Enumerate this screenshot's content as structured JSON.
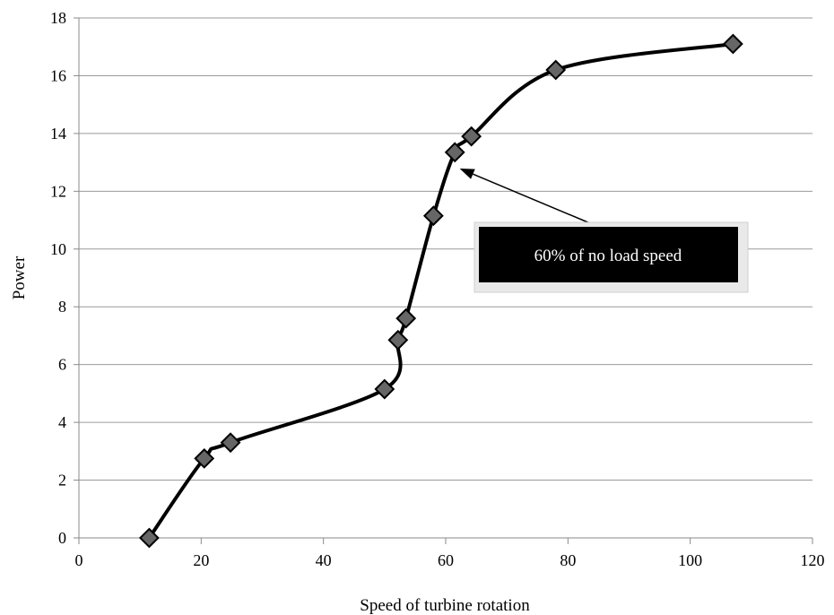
{
  "chart_data": {
    "type": "line",
    "title": "",
    "xlabel": "Speed of turbine rotation",
    "ylabel": "Power",
    "xlim": [
      0,
      120
    ],
    "ylim": [
      0,
      18
    ],
    "xticks": [
      0,
      20,
      40,
      60,
      80,
      100,
      120
    ],
    "yticks": [
      0,
      2,
      4,
      6,
      8,
      10,
      12,
      14,
      16,
      18
    ],
    "grid": "horizontal",
    "legend": "none",
    "series": [
      {
        "color": "#000000",
        "marker": "diamond",
        "marker_color": "#666666",
        "smooth": true,
        "x": [
          11.5,
          20.5,
          24.8,
          50.0,
          52.2,
          53.5,
          58.0,
          61.5,
          64.2,
          78.0,
          107.0
        ],
        "y": [
          0.0,
          2.75,
          3.3,
          5.15,
          6.85,
          7.6,
          11.15,
          13.35,
          13.9,
          16.2,
          17.1
        ]
      }
    ],
    "annotations": [
      {
        "text": "60% of no load speed",
        "x": 62,
        "y": 12.6,
        "box": "black",
        "text_color": "#ffffff"
      }
    ]
  }
}
